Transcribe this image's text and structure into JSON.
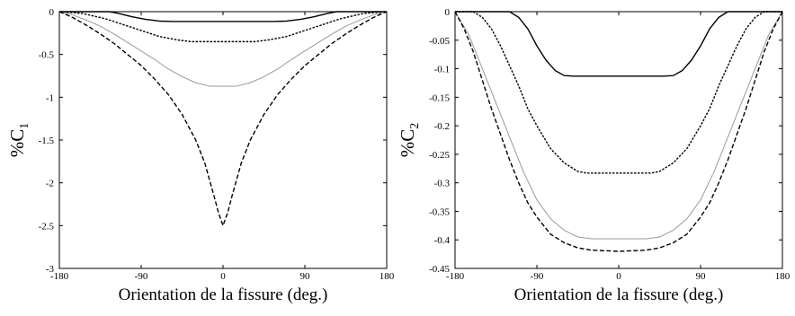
{
  "chart_data": [
    {
      "type": "line",
      "xlabel": "Orientation de la fissure (deg.)",
      "ylabel": {
        "prefix": "%C",
        "subscript": "1"
      },
      "xlim": [
        -180,
        180
      ],
      "ylim": [
        -3,
        0
      ],
      "xticks": [
        -180,
        -90,
        0,
        90,
        180
      ],
      "yticks": [
        0,
        -0.5,
        -1,
        -1.5,
        -2,
        -2.5,
        -3
      ],
      "xtick_labels": [
        "-180",
        "-90",
        "0",
        "90",
        "180"
      ],
      "ytick_labels": [
        "0",
        "-0.5",
        "-1",
        "-1.5",
        "-2",
        "-2.5",
        "-3"
      ],
      "grid": false,
      "series": [
        {
          "style": "solid",
          "color": "#000000",
          "points": [
            [
              -180,
              0
            ],
            [
              -125,
              0
            ],
            [
              -115,
              -0.02
            ],
            [
              -100,
              -0.06
            ],
            [
              -85,
              -0.09
            ],
            [
              -70,
              -0.11
            ],
            [
              -55,
              -0.115
            ],
            [
              0,
              -0.115
            ],
            [
              55,
              -0.115
            ],
            [
              70,
              -0.11
            ],
            [
              85,
              -0.09
            ],
            [
              100,
              -0.06
            ],
            [
              115,
              -0.02
            ],
            [
              125,
              0
            ],
            [
              180,
              0
            ]
          ]
        },
        {
          "style": "dotted",
          "color": "#000000",
          "points": [
            [
              -180,
              0
            ],
            [
              -155,
              -0.02
            ],
            [
              -130,
              -0.08
            ],
            [
              -110,
              -0.15
            ],
            [
              -90,
              -0.22
            ],
            [
              -70,
              -0.29
            ],
            [
              -50,
              -0.33
            ],
            [
              -35,
              -0.35
            ],
            [
              0,
              -0.35
            ],
            [
              35,
              -0.35
            ],
            [
              50,
              -0.33
            ],
            [
              70,
              -0.29
            ],
            [
              90,
              -0.22
            ],
            [
              110,
              -0.15
            ],
            [
              130,
              -0.08
            ],
            [
              155,
              -0.02
            ],
            [
              180,
              0
            ]
          ]
        },
        {
          "style": "gray",
          "color": "#9a9a9a",
          "points": [
            [
              -180,
              0
            ],
            [
              -165,
              -0.04
            ],
            [
              -150,
              -0.1
            ],
            [
              -135,
              -0.17
            ],
            [
              -120,
              -0.26
            ],
            [
              -105,
              -0.36
            ],
            [
              -90,
              -0.46
            ],
            [
              -75,
              -0.56
            ],
            [
              -60,
              -0.67
            ],
            [
              -45,
              -0.76
            ],
            [
              -30,
              -0.83
            ],
            [
              -15,
              -0.87
            ],
            [
              0,
              -0.87
            ],
            [
              15,
              -0.87
            ],
            [
              30,
              -0.83
            ],
            [
              45,
              -0.76
            ],
            [
              60,
              -0.67
            ],
            [
              75,
              -0.56
            ],
            [
              90,
              -0.46
            ],
            [
              105,
              -0.36
            ],
            [
              120,
              -0.26
            ],
            [
              135,
              -0.17
            ],
            [
              150,
              -0.1
            ],
            [
              165,
              -0.04
            ],
            [
              180,
              0
            ]
          ]
        },
        {
          "style": "dashed",
          "color": "#000000",
          "points": [
            [
              -180,
              0
            ],
            [
              -165,
              -0.07
            ],
            [
              -150,
              -0.16
            ],
            [
              -135,
              -0.26
            ],
            [
              -120,
              -0.37
            ],
            [
              -105,
              -0.5
            ],
            [
              -90,
              -0.63
            ],
            [
              -75,
              -0.79
            ],
            [
              -60,
              -0.97
            ],
            [
              -45,
              -1.2
            ],
            [
              -30,
              -1.5
            ],
            [
              -20,
              -1.77
            ],
            [
              -10,
              -2.15
            ],
            [
              -5,
              -2.35
            ],
            [
              0,
              -2.5
            ],
            [
              5,
              -2.35
            ],
            [
              10,
              -2.15
            ],
            [
              20,
              -1.77
            ],
            [
              30,
              -1.5
            ],
            [
              45,
              -1.2
            ],
            [
              60,
              -0.97
            ],
            [
              75,
              -0.79
            ],
            [
              90,
              -0.63
            ],
            [
              105,
              -0.5
            ],
            [
              120,
              -0.37
            ],
            [
              135,
              -0.26
            ],
            [
              150,
              -0.16
            ],
            [
              165,
              -0.07
            ],
            [
              180,
              0
            ]
          ]
        }
      ]
    },
    {
      "type": "line",
      "xlabel": "Orientation de la fissure (deg.)",
      "ylabel": {
        "prefix": "%C",
        "subscript": "2"
      },
      "xlim": [
        -180,
        180
      ],
      "ylim": [
        -0.45,
        0
      ],
      "xticks": [
        -180,
        -90,
        0,
        90,
        180
      ],
      "yticks": [
        0,
        -0.05,
        -0.1,
        -0.15,
        -0.2,
        -0.25,
        -0.3,
        -0.35,
        -0.4,
        -0.45
      ],
      "xtick_labels": [
        "-180",
        "-90",
        "0",
        "90",
        "180"
      ],
      "ytick_labels": [
        "0",
        "-0.05",
        "-0.1",
        "-0.15",
        "-0.2",
        "-0.25",
        "-0.3",
        "-0.35",
        "-0.4",
        "-0.45"
      ],
      "grid": false,
      "series": [
        {
          "style": "solid",
          "color": "#000000",
          "points": [
            [
              -180,
              0
            ],
            [
              -120,
              0
            ],
            [
              -110,
              -0.01
            ],
            [
              -100,
              -0.03
            ],
            [
              -90,
              -0.06
            ],
            [
              -80,
              -0.085
            ],
            [
              -70,
              -0.103
            ],
            [
              -60,
              -0.112
            ],
            [
              -50,
              -0.113
            ],
            [
              0,
              -0.113
            ],
            [
              50,
              -0.113
            ],
            [
              60,
              -0.112
            ],
            [
              70,
              -0.103
            ],
            [
              80,
              -0.085
            ],
            [
              90,
              -0.06
            ],
            [
              100,
              -0.03
            ],
            [
              110,
              -0.01
            ],
            [
              120,
              0
            ],
            [
              180,
              0
            ]
          ]
        },
        {
          "style": "dotted",
          "color": "#000000",
          "points": [
            [
              -180,
              0
            ],
            [
              -160,
              0
            ],
            [
              -150,
              -0.01
            ],
            [
              -140,
              -0.03
            ],
            [
              -130,
              -0.06
            ],
            [
              -120,
              -0.095
            ],
            [
              -110,
              -0.13
            ],
            [
              -100,
              -0.17
            ],
            [
              -90,
              -0.2
            ],
            [
              -75,
              -0.24
            ],
            [
              -60,
              -0.265
            ],
            [
              -45,
              -0.28
            ],
            [
              -35,
              -0.283
            ],
            [
              0,
              -0.283
            ],
            [
              35,
              -0.283
            ],
            [
              45,
              -0.28
            ],
            [
              60,
              -0.265
            ],
            [
              75,
              -0.24
            ],
            [
              90,
              -0.2
            ],
            [
              100,
              -0.17
            ],
            [
              110,
              -0.13
            ],
            [
              120,
              -0.095
            ],
            [
              130,
              -0.06
            ],
            [
              140,
              -0.03
            ],
            [
              150,
              -0.01
            ],
            [
              160,
              0
            ],
            [
              180,
              0
            ]
          ]
        },
        {
          "style": "gray",
          "color": "#9a9a9a",
          "points": [
            [
              -180,
              0
            ],
            [
              -165,
              -0.04
            ],
            [
              -150,
              -0.1
            ],
            [
              -135,
              -0.16
            ],
            [
              -120,
              -0.22
            ],
            [
              -105,
              -0.28
            ],
            [
              -90,
              -0.33
            ],
            [
              -75,
              -0.363
            ],
            [
              -60,
              -0.383
            ],
            [
              -45,
              -0.395
            ],
            [
              -30,
              -0.398
            ],
            [
              0,
              -0.398
            ],
            [
              30,
              -0.398
            ],
            [
              45,
              -0.395
            ],
            [
              60,
              -0.383
            ],
            [
              75,
              -0.363
            ],
            [
              90,
              -0.33
            ],
            [
              105,
              -0.28
            ],
            [
              120,
              -0.22
            ],
            [
              135,
              -0.16
            ],
            [
              150,
              -0.1
            ],
            [
              165,
              -0.04
            ],
            [
              180,
              0
            ]
          ]
        },
        {
          "style": "dashed",
          "color": "#000000",
          "points": [
            [
              -180,
              0
            ],
            [
              -170,
              -0.03
            ],
            [
              -160,
              -0.07
            ],
            [
              -150,
              -0.12
            ],
            [
              -140,
              -0.17
            ],
            [
              -130,
              -0.215
            ],
            [
              -120,
              -0.26
            ],
            [
              -110,
              -0.3
            ],
            [
              -100,
              -0.335
            ],
            [
              -90,
              -0.36
            ],
            [
              -75,
              -0.39
            ],
            [
              -60,
              -0.405
            ],
            [
              -45,
              -0.414
            ],
            [
              -30,
              -0.418
            ],
            [
              0,
              -0.42
            ],
            [
              30,
              -0.418
            ],
            [
              45,
              -0.414
            ],
            [
              60,
              -0.405
            ],
            [
              75,
              -0.39
            ],
            [
              90,
              -0.36
            ],
            [
              100,
              -0.335
            ],
            [
              110,
              -0.3
            ],
            [
              120,
              -0.26
            ],
            [
              130,
              -0.215
            ],
            [
              140,
              -0.17
            ],
            [
              150,
              -0.12
            ],
            [
              160,
              -0.07
            ],
            [
              170,
              -0.03
            ],
            [
              180,
              0
            ]
          ]
        }
      ]
    }
  ]
}
